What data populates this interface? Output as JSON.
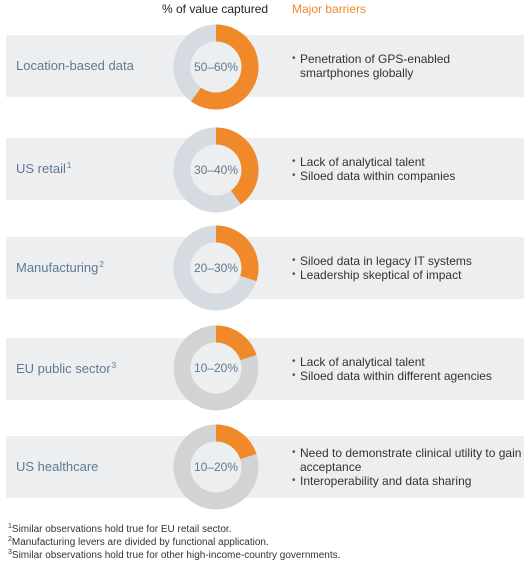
{
  "header": {
    "value_captured_label": "% of value captured",
    "major_barriers_label": "Major barriers"
  },
  "colors": {
    "accent": "#f0892a",
    "ring_blue_gray": "#d5dbe1",
    "ring_gray": "#d2d3d5",
    "row_background": "#edeef0",
    "label_blue": "#5e7a93"
  },
  "chart_data": {
    "type": "pie",
    "subtype": "donut",
    "series_label": "% of value captured",
    "categories": [
      "Location-based data",
      "US retail",
      "Manufacturing",
      "EU public sector",
      "US healthcare"
    ],
    "value_ranges": [
      [
        50,
        60
      ],
      [
        30,
        40
      ],
      [
        20,
        30
      ],
      [
        10,
        20
      ],
      [
        10,
        20
      ]
    ],
    "range_labels": [
      "50–60%",
      "30–40%",
      "20–30%",
      "10–20%",
      "10–20%"
    ]
  },
  "rows": [
    {
      "label": "Location-based data",
      "footnote_marker": "",
      "barriers": [
        "Penetration of GPS-enabled smartphones globally"
      ]
    },
    {
      "label": "US retail",
      "footnote_marker": "1",
      "barriers": [
        "Lack of analytical talent",
        "Siloed data within companies"
      ]
    },
    {
      "label": "Manufacturing",
      "footnote_marker": "2",
      "barriers": [
        "Siloed data in legacy IT systems",
        "Leadership skeptical of impact"
      ]
    },
    {
      "label": "EU public sector",
      "footnote_marker": "3",
      "barriers": [
        "Lack of analytical talent",
        "Siloed data within different agencies"
      ]
    },
    {
      "label": "US healthcare",
      "footnote_marker": "",
      "barriers": [
        "Need to demonstrate clinical utility to gain acceptance",
        "Interoperability and data sharing"
      ]
    }
  ],
  "footnotes": [
    {
      "marker": "1",
      "text": "Similar observations hold true for EU retail sector."
    },
    {
      "marker": "2",
      "text": "Manufacturing levers are divided by functional application."
    },
    {
      "marker": "3",
      "text": "Similar observations hold true for other high-income-country governments."
    }
  ]
}
